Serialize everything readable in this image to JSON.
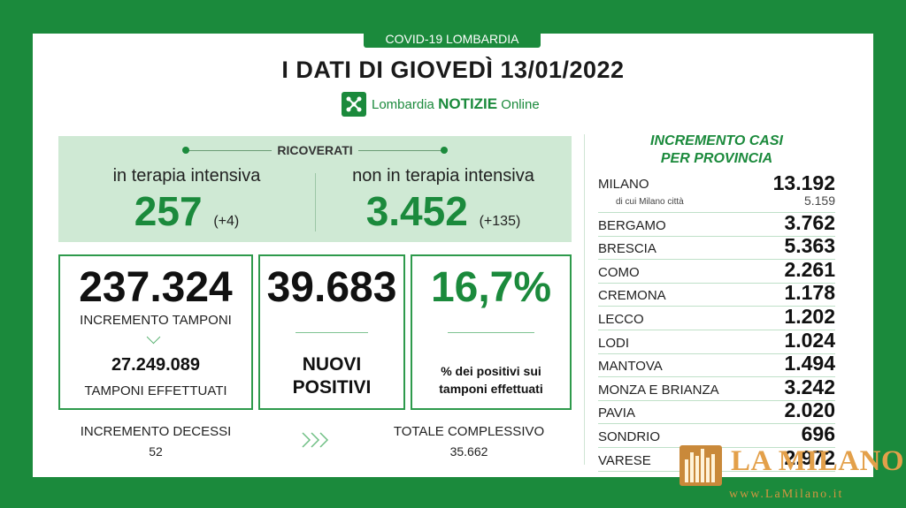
{
  "header": {
    "badge": "COVID-19 LOMBARDIA",
    "title": "I DATI DI GIOVEDÌ 13/01/2022",
    "brand_plain": "Lombardia",
    "brand_bold": "NOTIZIE",
    "brand_suffix": "Online"
  },
  "ricoverati": {
    "label": "RICOVERATI",
    "intensive": {
      "label": "in terapia intensiva",
      "value": "257",
      "delta": "(+4)"
    },
    "non_intensive": {
      "label": "non in terapia intensiva",
      "value": "3.452",
      "delta": "(+135)"
    }
  },
  "tamponi": {
    "increment_value": "237.324",
    "increment_label": "INCREMENTO TAMPONI",
    "total_value": "27.249.089",
    "total_label": "TAMPONI EFFETTUATI"
  },
  "positivi": {
    "value": "39.683",
    "label_line1": "NUOVI",
    "label_line2": "POSITIVI"
  },
  "percentuale": {
    "value": "16,7%",
    "label_line1": "% dei positivi sui",
    "label_line2": "tamponi effettuati"
  },
  "decessi": {
    "label": "INCREMENTO DECESSI",
    "value": "52"
  },
  "totale": {
    "label": "TOTALE COMPLESSIVO",
    "value": "35.662"
  },
  "province": {
    "title_line1": "INCREMENTO CASI",
    "title_line2": "PER PROVINCIA",
    "milano": {
      "name": "MILANO",
      "value": "13.192",
      "city_label": "di cui Milano città",
      "city_value": "5.159"
    },
    "rows": [
      {
        "name": "BERGAMO",
        "value": "3.762"
      },
      {
        "name": "BRESCIA",
        "value": "5.363"
      },
      {
        "name": "COMO",
        "value": "2.261"
      },
      {
        "name": "CREMONA",
        "value": "1.178"
      },
      {
        "name": "LECCO",
        "value": "1.202"
      },
      {
        "name": "LODI",
        "value": "1.024"
      },
      {
        "name": "MANTOVA",
        "value": "1.494"
      },
      {
        "name": "MONZA E BRIANZA",
        "value": "3.242"
      },
      {
        "name": "PAVIA",
        "value": "2.020"
      },
      {
        "name": "SONDRIO",
        "value": "696"
      },
      {
        "name": "VARESE",
        "value": "2.972"
      }
    ]
  },
  "watermark": {
    "title": "LA MILANO",
    "url": "www.LaMilano.it"
  },
  "colors": {
    "green": "#1b8a3c",
    "light_green": "#cfe9d4",
    "watermark_gold": "#e3a04a"
  }
}
